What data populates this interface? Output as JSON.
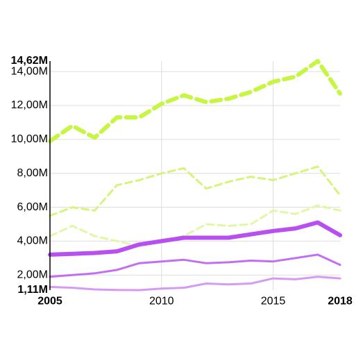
{
  "chart_data": {
    "type": "line",
    "x": [
      2005,
      2006,
      2007,
      2008,
      2009,
      2010,
      2011,
      2012,
      2013,
      2014,
      2015,
      2016,
      2017,
      2018
    ],
    "xlim": [
      2005,
      2018
    ],
    "ylim": [
      1110000,
      14620000
    ],
    "x_ticks": [
      {
        "value": 2005,
        "label": "2005",
        "bold": true
      },
      {
        "value": 2010,
        "label": "2010",
        "bold": false
      },
      {
        "value": 2015,
        "label": "2015",
        "bold": false
      },
      {
        "value": 2018,
        "label": "2018",
        "bold": true
      }
    ],
    "y_ticks": [
      {
        "value": 1110000,
        "label": "1,11M",
        "bold": true,
        "grid": false
      },
      {
        "value": 2000000,
        "label": "2,00M",
        "bold": false,
        "grid": true
      },
      {
        "value": 4000000,
        "label": "4,00M",
        "bold": false,
        "grid": true
      },
      {
        "value": 6000000,
        "label": "6,00M",
        "bold": false,
        "grid": true
      },
      {
        "value": 8000000,
        "label": "8,00M",
        "bold": false,
        "grid": true
      },
      {
        "value": 10000000,
        "label": "10,00M",
        "bold": false,
        "grid": true
      },
      {
        "value": 12000000,
        "label": "12,00M",
        "bold": false,
        "grid": true
      },
      {
        "value": 14000000,
        "label": "14,00M",
        "bold": false,
        "grid": true
      },
      {
        "value": 14620000,
        "label": "14,62M",
        "bold": true,
        "grid": false
      }
    ],
    "x_grid": [
      2010,
      2015
    ],
    "grid": true,
    "legend": "none",
    "series": [
      {
        "color": "#c6f542",
        "width": 6,
        "dash": "14,8",
        "values": [
          9900000,
          10800000,
          10100000,
          11300000,
          11300000,
          12100000,
          12600000,
          12200000,
          12400000,
          12800000,
          13400000,
          13700000,
          14620000,
          12700000
        ]
      },
      {
        "color": "#d2f57a",
        "width": 3,
        "dash": "10,6",
        "values": [
          5500000,
          6000000,
          5800000,
          7300000,
          7600000,
          8000000,
          8300000,
          7100000,
          7500000,
          7800000,
          7600000,
          8000000,
          8400000,
          6700000
        ]
      },
      {
        "color": "#e0f7a6",
        "width": 3,
        "dash": "10,6",
        "values": [
          4300000,
          4900000,
          4300000,
          4000000,
          3700000,
          4000000,
          4300000,
          5000000,
          4900000,
          5000000,
          5800000,
          5600000,
          6100000,
          5800000
        ]
      },
      {
        "color": "#b84ff0",
        "width": 6,
        "dash": "",
        "values": [
          3200000,
          3250000,
          3300000,
          3400000,
          3800000,
          4000000,
          4200000,
          4200000,
          4200000,
          4400000,
          4600000,
          4750000,
          5100000,
          4350000
        ]
      },
      {
        "color": "#c36ef2",
        "width": 3,
        "dash": "",
        "values": [
          1900000,
          2000000,
          2100000,
          2300000,
          2700000,
          2800000,
          2900000,
          2700000,
          2750000,
          2850000,
          2800000,
          3000000,
          3200000,
          2600000
        ]
      },
      {
        "color": "#d49af5",
        "width": 3,
        "dash": "",
        "values": [
          1300000,
          1250000,
          1150000,
          1120000,
          1110000,
          1200000,
          1250000,
          1500000,
          1450000,
          1500000,
          1800000,
          1750000,
          1900000,
          1800000
        ]
      }
    ]
  }
}
